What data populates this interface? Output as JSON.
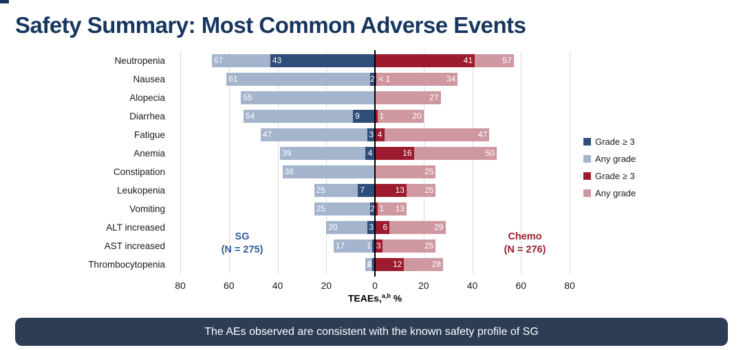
{
  "title": "Safety Summary: Most Common Adverse Events",
  "banner_text": "The AEs observed are consistent with the known safety profile of SG",
  "axis": {
    "label_prefix": "TEAEs,",
    "label_sup": "a,b",
    "label_suffix": " %",
    "ticks": [
      "80",
      "60",
      "40",
      "20",
      "0",
      "20",
      "40",
      "60",
      "80"
    ]
  },
  "groups": {
    "sg_name": "SG",
    "sg_n": "(N = 275)",
    "chemo_name": "Chemo",
    "chemo_n": "(N = 276)"
  },
  "legend": [
    {
      "label": "Grade ≥ 3",
      "color_key": "sg_grade3"
    },
    {
      "label": "Any grade",
      "color_key": "sg_any"
    },
    {
      "label": "Grade ≥ 3",
      "color_key": "chemo_grade3"
    },
    {
      "label": "Any grade",
      "color_key": "chemo_any"
    }
  ],
  "colors": {
    "sg_any": "#a3b4cc",
    "sg_grade3": "#2e4d78",
    "chemo_any": "#cf98a1",
    "chemo_grade3": "#9c1b2e",
    "title": "#17365d",
    "banner": "#2c3d55",
    "sg_label": "#2e5b9e",
    "chemo_label": "#9b1f2f",
    "gridline": "#d9d9d9",
    "zero_line": "#000000"
  },
  "chart_data": {
    "type": "bar",
    "subtype": "diverging-butterfly",
    "title": "Safety Summary: Most Common Adverse Events",
    "xlabel": "TEAEs, %",
    "unit": "percent",
    "x_range_per_side": [
      0,
      80
    ],
    "grid": true,
    "legend_position": "right",
    "categories": [
      "Neutropenia",
      "Nausea",
      "Alopecia",
      "Diarrhea",
      "Fatigue",
      "Anemia",
      "Constipation",
      "Leukopenia",
      "Vomiting",
      "ALT increased",
      "AST increased",
      "Thrombocytopenia"
    ],
    "series": [
      {
        "name": "SG Any grade",
        "side": "left",
        "values": [
          67,
          61,
          55,
          54,
          47,
          39,
          38,
          25,
          25,
          20,
          17,
          4
        ]
      },
      {
        "name": "SG Grade >= 3",
        "side": "left",
        "values": [
          43,
          2,
          null,
          9,
          3,
          4,
          null,
          7,
          2,
          3,
          1,
          1
        ]
      },
      {
        "name": "Chemo Grade >= 3",
        "side": "right",
        "values": [
          41,
          0.7,
          null,
          1,
          4,
          16,
          null,
          13,
          1,
          6,
          3,
          12
        ]
      },
      {
        "name": "Chemo Any grade",
        "side": "right",
        "values": [
          57,
          34,
          27,
          20,
          47,
          50,
          25,
          25,
          13,
          29,
          25,
          28
        ]
      }
    ],
    "rows": [
      {
        "label": "Neutropenia",
        "sg_any": 67,
        "sg_any_label": "67",
        "sg_g3": 43,
        "sg_g3_label": "43",
        "chemo_g3": 41,
        "chemo_g3_label": "41",
        "chemo_any": 57,
        "chemo_any_label": "57"
      },
      {
        "label": "Nausea",
        "sg_any": 61,
        "sg_any_label": "61",
        "sg_g3": 2,
        "sg_g3_label": "2",
        "chemo_g3": 0.7,
        "chemo_g3_label": "< 1",
        "chemo_any": 34,
        "chemo_any_label": "34"
      },
      {
        "label": "Alopecia",
        "sg_any": 55,
        "sg_any_label": "55",
        "sg_g3": null,
        "sg_g3_label": "",
        "chemo_g3": null,
        "chemo_g3_label": "",
        "chemo_any": 27,
        "chemo_any_label": "27"
      },
      {
        "label": "Diarrhea",
        "sg_any": 54,
        "sg_any_label": "54",
        "sg_g3": 9,
        "sg_g3_label": "9",
        "chemo_g3": 1,
        "chemo_g3_label": "1",
        "chemo_any": 20,
        "chemo_any_label": "20"
      },
      {
        "label": "Fatigue",
        "sg_any": 47,
        "sg_any_label": "47",
        "sg_g3": 3,
        "sg_g3_label": "3",
        "chemo_g3": 4,
        "chemo_g3_label": "4",
        "chemo_any": 47,
        "chemo_any_label": "47"
      },
      {
        "label": "Anemia",
        "sg_any": 39,
        "sg_any_label": "39",
        "sg_g3": 4,
        "sg_g3_label": "4",
        "chemo_g3": 16,
        "chemo_g3_label": "16",
        "chemo_any": 50,
        "chemo_any_label": "50"
      },
      {
        "label": "Constipation",
        "sg_any": 38,
        "sg_any_label": "38",
        "sg_g3": null,
        "sg_g3_label": "",
        "chemo_g3": null,
        "chemo_g3_label": "",
        "chemo_any": 25,
        "chemo_any_label": "25"
      },
      {
        "label": "Leukopenia",
        "sg_any": 25,
        "sg_any_label": "25",
        "sg_g3": 7,
        "sg_g3_label": "7",
        "chemo_g3": 13,
        "chemo_g3_label": "13",
        "chemo_any": 25,
        "chemo_any_label": "25"
      },
      {
        "label": "Vomiting",
        "sg_any": 25,
        "sg_any_label": "25",
        "sg_g3": 2,
        "sg_g3_label": "2",
        "chemo_g3": 1,
        "chemo_g3_label": "1",
        "chemo_any": 13,
        "chemo_any_label": "13"
      },
      {
        "label": "ALT increased",
        "sg_any": 20,
        "sg_any_label": "20",
        "sg_g3": 3,
        "sg_g3_label": "3",
        "chemo_g3": 6,
        "chemo_g3_label": "6",
        "chemo_any": 29,
        "chemo_any_label": "29"
      },
      {
        "label": "AST increased",
        "sg_any": 17,
        "sg_any_label": "17",
        "sg_g3": 1,
        "sg_g3_label": "1",
        "chemo_g3": 3,
        "chemo_g3_label": "3",
        "chemo_any": 25,
        "chemo_any_label": "25"
      },
      {
        "label": "Thrombocytopenia",
        "sg_any": 4,
        "sg_any_label": "4",
        "sg_g3": 1,
        "sg_g3_label": "1",
        "chemo_g3": 12,
        "chemo_g3_label": "12",
        "chemo_any": 28,
        "chemo_any_label": "28"
      }
    ]
  }
}
